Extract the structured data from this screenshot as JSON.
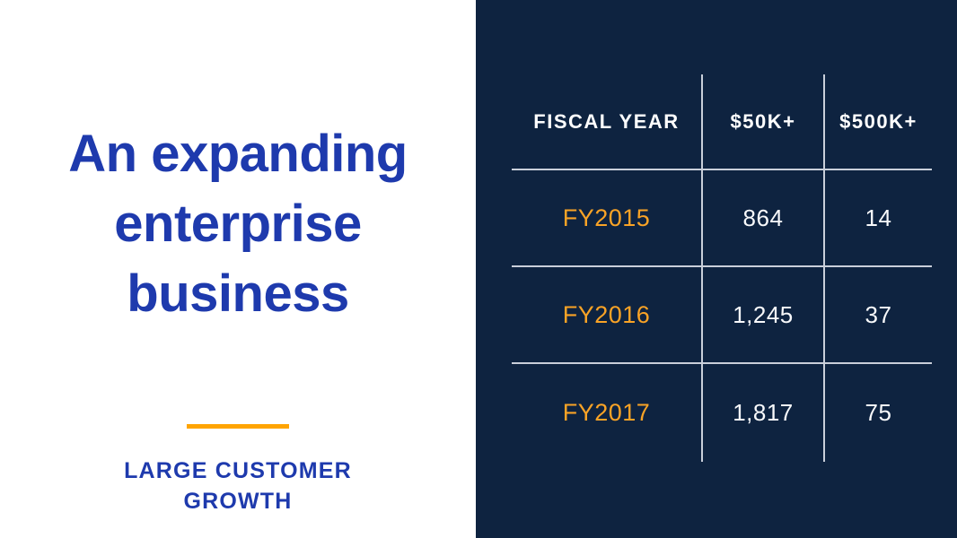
{
  "slide": {
    "title_lines": [
      "An expanding",
      "enterprise",
      "business"
    ],
    "subtitle_lines": [
      "LARGE CUSTOMER",
      "GROWTH"
    ]
  },
  "table": {
    "headers": [
      "FISCAL YEAR",
      "$50K+",
      "$500K+"
    ],
    "rows": [
      [
        "FY2015",
        "864",
        "14"
      ],
      [
        "FY2016",
        "1,245",
        "37"
      ],
      [
        "FY2017",
        "1,817",
        "75"
      ]
    ]
  },
  "chart_data": {
    "type": "table",
    "title": "An expanding enterprise business",
    "subtitle": "LARGE CUSTOMER GROWTH",
    "columns": [
      "FISCAL YEAR",
      "$50K+",
      "$500K+"
    ],
    "rows": [
      {
        "fiscal_year": "FY2015",
        "customers_50k_plus": 864,
        "customers_500k_plus": 14
      },
      {
        "fiscal_year": "FY2016",
        "customers_50k_plus": 1245,
        "customers_500k_plus": 37
      },
      {
        "fiscal_year": "FY2017",
        "customers_50k_plus": 1817,
        "customers_500k_plus": 75
      }
    ]
  },
  "colors": {
    "heading_blue": "#1E3AAD",
    "accent_orange": "#FFA400",
    "row_label_orange": "#F9A326",
    "panel_navy": "#0E2340",
    "table_line": "#C9CFDA"
  }
}
